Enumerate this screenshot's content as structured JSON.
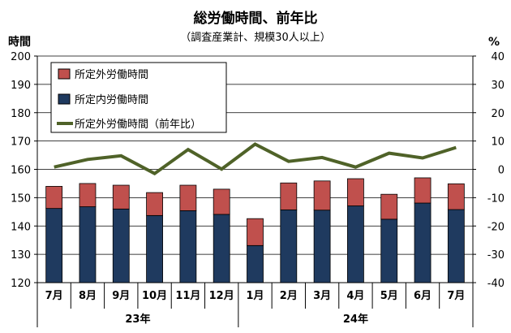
{
  "chart_data": {
    "type": "bar",
    "title": "総労働時間、前年比",
    "subtitle": "（調査産業計、規模30人以上）",
    "ylabel_left": "時間",
    "ylabel_right": "%",
    "ylim_left": [
      120,
      200
    ],
    "ylim_right": [
      -40,
      40
    ],
    "yticks_left": [
      "120",
      "130",
      "140",
      "150",
      "160",
      "170",
      "180",
      "190",
      "200"
    ],
    "yticks_right": [
      "-40",
      "-30",
      "-20",
      "-10",
      "0",
      "10",
      "20",
      "30",
      "40"
    ],
    "categories": [
      "7月",
      "8月",
      "9月",
      "10月",
      "11月",
      "12月",
      "1月",
      "2月",
      "3月",
      "4月",
      "5月",
      "6月",
      "7月"
    ],
    "year_groups": [
      {
        "label": "23年",
        "start": 0,
        "end": 5
      },
      {
        "label": "24年",
        "start": 6,
        "end": 12
      }
    ],
    "series": [
      {
        "name": "所定外労働時間",
        "type": "stacked-bar",
        "color": "#c0504d",
        "values": [
          7.8,
          8.2,
          8.4,
          8.1,
          9.0,
          8.9,
          9.5,
          9.5,
          10.3,
          9.6,
          8.8,
          8.9,
          9.1
        ]
      },
      {
        "name": "所定内労働時間",
        "type": "stacked-bar",
        "color": "#1f3a5f",
        "values": [
          146.2,
          146.8,
          146.0,
          143.7,
          145.4,
          144.1,
          133.1,
          145.7,
          145.6,
          147.1,
          142.4,
          148.1,
          145.8
        ]
      },
      {
        "name": "所定外労働時間（前年比）",
        "type": "line",
        "axis": "right",
        "color": "#4f6228",
        "values": [
          0.8,
          3.5,
          4.8,
          -1.5,
          7.0,
          0.1,
          8.9,
          2.8,
          4.2,
          0.8,
          5.7,
          4.0,
          7.7
        ]
      }
    ],
    "legend_position": "top-left",
    "grid": true
  }
}
